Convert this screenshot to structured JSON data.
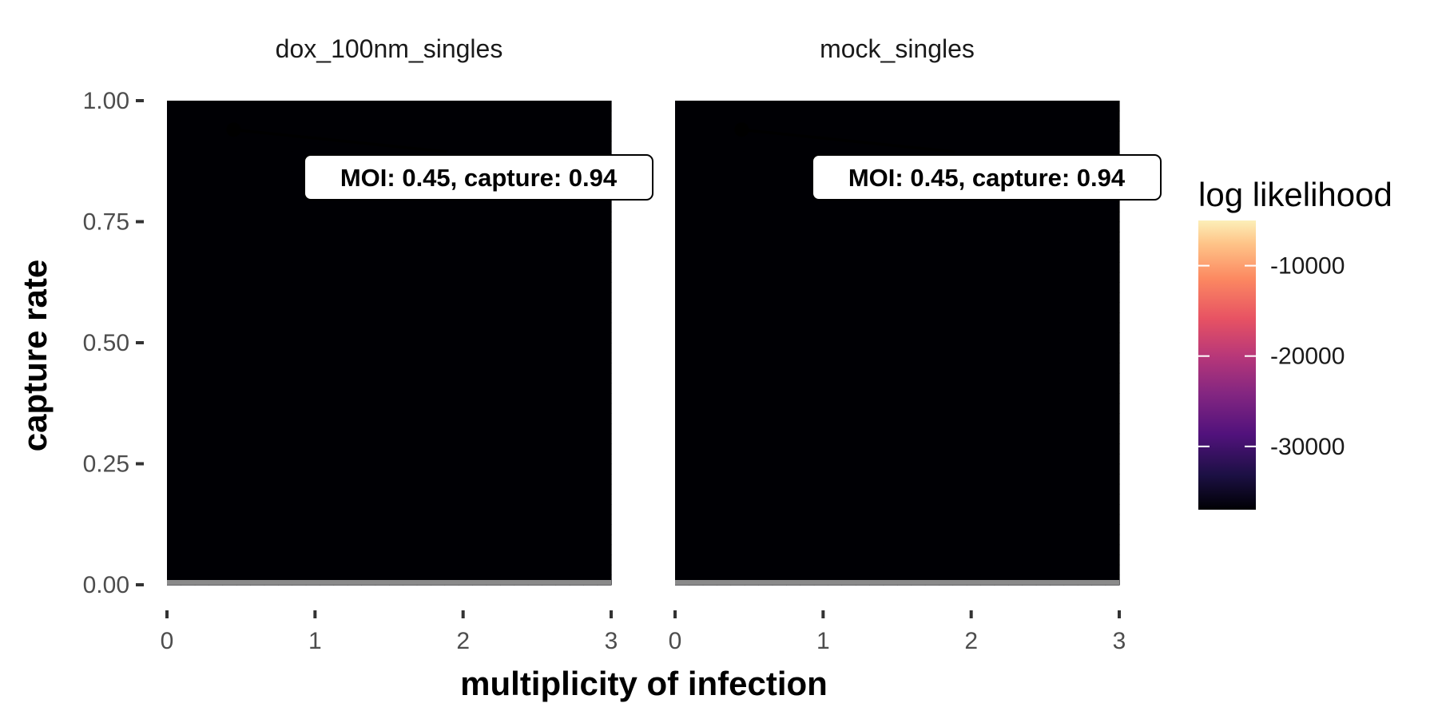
{
  "chart_data": {
    "type": "heatmap",
    "xlabel": "multiplicity of infection",
    "ylabel": "capture rate",
    "xlim": [
      0,
      3
    ],
    "ylim": [
      0,
      1
    ],
    "x_ticks": [
      "0",
      "1",
      "2",
      "3"
    ],
    "y_ticks": [
      "0.00",
      "0.25",
      "0.50",
      "0.75",
      "1.00"
    ],
    "colorscale": "magma",
    "legend": {
      "title": "log likelihood",
      "range": [
        -37000,
        -5000
      ],
      "tick_values": [
        -10000,
        -20000,
        -30000
      ],
      "tick_labels": [
        "-10000",
        "-20000",
        "-30000"
      ],
      "position": "right"
    },
    "facets": [
      {
        "title": "dox_100nm_singles",
        "max_moi": 0.45,
        "max_capture": 0.94,
        "annotation": "MOI: 0.45, capture: 0.94"
      },
      {
        "title": "mock_singles",
        "max_moi": 0.45,
        "max_capture": 0.94,
        "annotation": "MOI: 0.45, capture: 0.94"
      }
    ],
    "contours": true,
    "grid": false
  }
}
